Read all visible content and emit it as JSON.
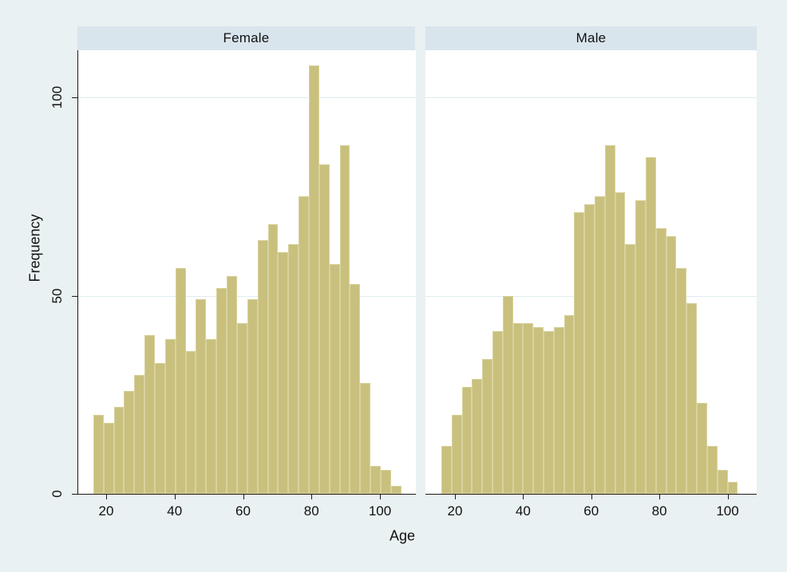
{
  "panels": [
    {
      "title": "Female"
    },
    {
      "title": "Male"
    }
  ],
  "x_axis": {
    "label": "Age",
    "ticks": [
      "20",
      "40",
      "60",
      "80",
      "100"
    ],
    "tick_values": [
      20,
      40,
      60,
      80,
      100
    ]
  },
  "y_axis": {
    "label": "Frequency",
    "ticks": [
      "0",
      "50",
      "100"
    ],
    "tick_values": [
      0,
      50,
      100
    ]
  },
  "colors": {
    "page_background": "#eaf1f3",
    "plot_background": "#ffffff",
    "strip_background": "#d9e5ec",
    "bar_fill": "#c9c07e",
    "bar_outline": "#d8d29c",
    "gridline": "#dfeaee",
    "axis_line": "#1a1a1a",
    "text": "#111111"
  },
  "chart_data": {
    "type": "bar",
    "subtype": "histogram-by-panel",
    "title": "",
    "xlabel": "Age",
    "ylabel": "Frequency",
    "xlim": [
      11.5,
      110
    ],
    "ylim": [
      0,
      112
    ],
    "grid": "horizontal",
    "y_gridlines_at": [
      50,
      100
    ],
    "bin_start": 16,
    "bin_width": 3,
    "series": [
      {
        "name": "Female",
        "frequencies": [
          20,
          18,
          22,
          26,
          30,
          40,
          33,
          39,
          57,
          36,
          49,
          39,
          52,
          55,
          43,
          49,
          64,
          68,
          61,
          63,
          75,
          108,
          83,
          58,
          88,
          53,
          28,
          7,
          6,
          2
        ]
      },
      {
        "name": "Male",
        "frequencies": [
          12,
          20,
          27,
          29,
          34,
          41,
          50,
          43,
          43,
          42,
          41,
          42,
          45,
          71,
          73,
          75,
          88,
          76,
          63,
          74,
          85,
          67,
          65,
          57,
          48,
          23,
          12,
          6,
          3
        ]
      }
    ]
  }
}
